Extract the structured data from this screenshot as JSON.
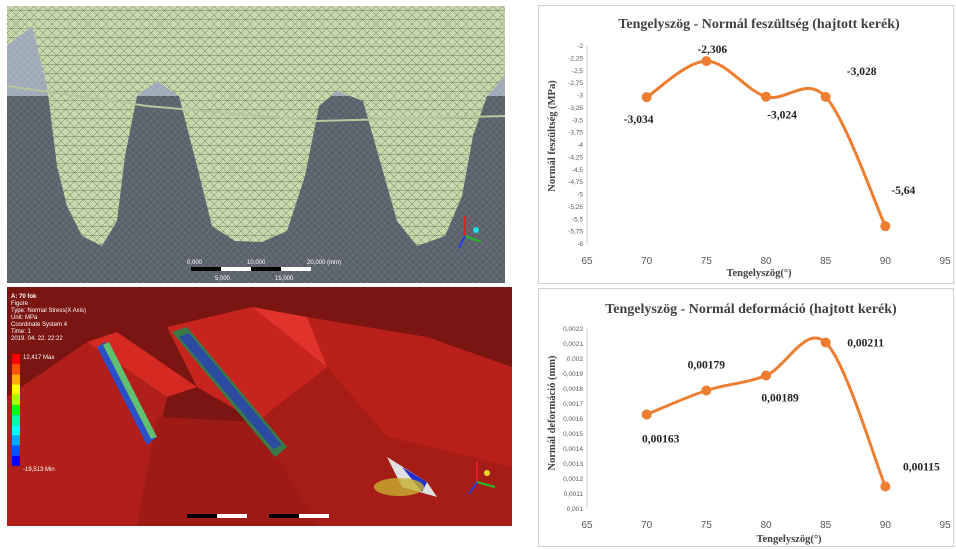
{
  "mesh_view": {
    "scale_labels": [
      "0,000",
      "10,000",
      "20,000 (mm)",
      "5,000",
      "15,000"
    ]
  },
  "stress_view": {
    "info_lines": [
      "A: 70 fok",
      "Figure",
      "Type: Normal Stress(X Axis)",
      "Unit: MPa",
      "Coordinate System 4",
      "Time: 1",
      "2019. 04. 22. 22:22"
    ],
    "legend_max": "12,417 Max",
    "legend_min": "-19,513 Min",
    "legend_colors": [
      "#ff0000",
      "#ff5500",
      "#ffaa00",
      "#ffff00",
      "#aaff00",
      "#00ff00",
      "#00ffaa",
      "#00ffff",
      "#00aaff",
      "#0055ff",
      "#0000ff"
    ]
  },
  "chart_data": [
    {
      "type": "line",
      "title": "Tengelyszög - Normál feszültség (hajtott kerék)",
      "xlabel": "Tengelyszög(°)",
      "ylabel": "Normál feszültség (MPa)",
      "x_ticks": [
        "65",
        "70",
        "75",
        "80",
        "85",
        "90",
        "95"
      ],
      "y_ticks": [
        "-2",
        "-2,25",
        "-2,5",
        "-2,75",
        "-3",
        "-3,25",
        "-3,5",
        "-3,75",
        "-4",
        "-4,25",
        "-4,5",
        "-4,75",
        "-5",
        "-5,25",
        "-5,5",
        "-5,75",
        "-6"
      ],
      "xlim": [
        65,
        95
      ],
      "ylim": [
        -6,
        -2
      ],
      "x": [
        70,
        75,
        80,
        85,
        90
      ],
      "y": [
        -3.034,
        -2.306,
        -3.024,
        -3.028,
        -5.64
      ],
      "data_labels": [
        "-3,034",
        "-2,306",
        "-3,024",
        "-3,028",
        "-5,64"
      ],
      "color": "#ed7d31",
      "smooth": true
    },
    {
      "type": "line",
      "title": "Tengelyszög - Normál deformáció (hajtott kerék)",
      "xlabel": "Tengelyszög(°)",
      "ylabel": "Normál deformáció (mm)",
      "x_ticks": [
        "65",
        "70",
        "75",
        "80",
        "85",
        "90",
        "95"
      ],
      "y_ticks": [
        "0,0022",
        "0,0021",
        "0,002",
        "0,0019",
        "0,0018",
        "0,0017",
        "0,0016",
        "0,0015",
        "0,0014",
        "0,0013",
        "0,0012",
        "0,0011",
        "0,001"
      ],
      "xlim": [
        65,
        95
      ],
      "ylim": [
        0.001,
        0.0022
      ],
      "x": [
        70,
        75,
        80,
        85,
        90
      ],
      "y": [
        0.00163,
        0.00179,
        0.00189,
        0.00211,
        0.00115
      ],
      "data_labels": [
        "0,00163",
        "0,00179",
        "0,00189",
        "0,00211",
        "0,00115"
      ],
      "color": "#ed7d31",
      "smooth": true
    }
  ]
}
